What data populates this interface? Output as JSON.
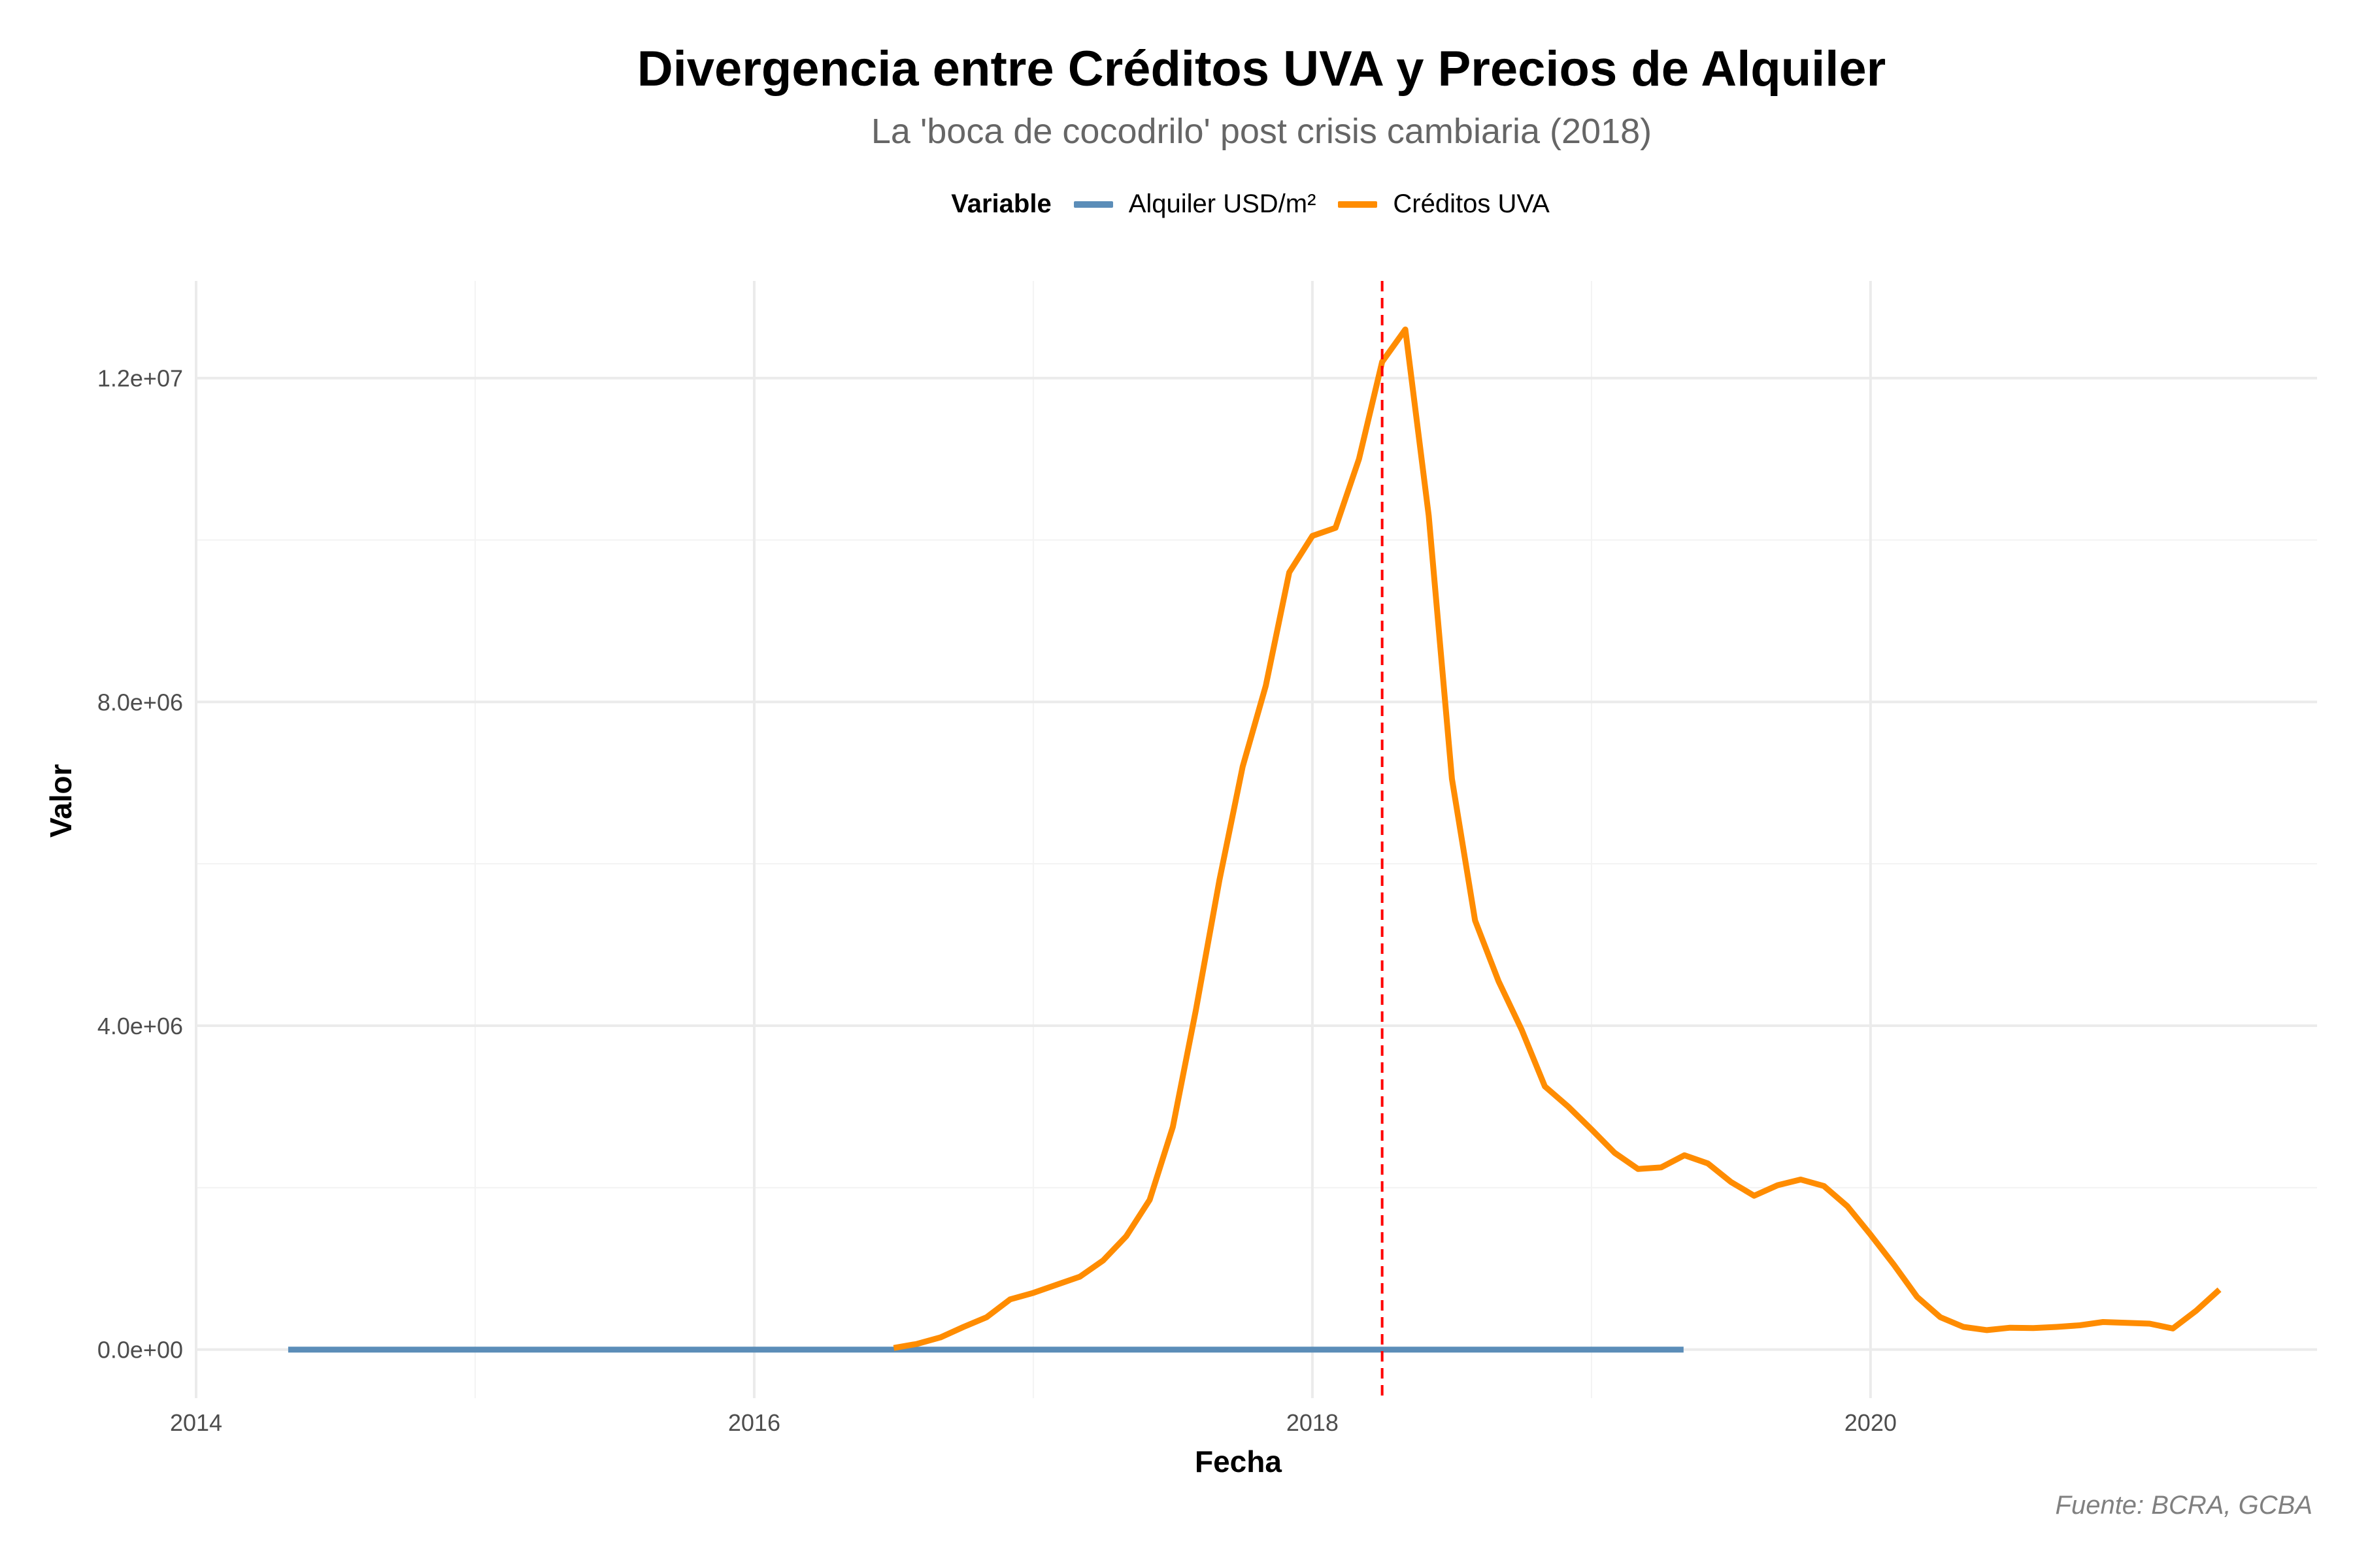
{
  "chart_data": {
    "type": "line",
    "title": "Divergencia entre Créditos UVA y Precios de Alquiler",
    "subtitle": "La 'boca de cocodrilo' post crisis cambiaria (2018)",
    "xlabel": "Fecha",
    "ylabel": "Valor",
    "caption": "Fuente: BCRA, GCBA",
    "legend_title": "Variable",
    "legend_position": "top",
    "grid": true,
    "xlim": [
      2014.0,
      2021.6
    ],
    "ylim": [
      -600000,
      13200000
    ],
    "x_ticks": [
      2014,
      2016,
      2018,
      2020
    ],
    "x_tick_labels": [
      "2014",
      "2016",
      "2018",
      "2020"
    ],
    "y_ticks": [
      0,
      4000000,
      8000000,
      12000000
    ],
    "y_tick_labels": [
      "0.0e+00",
      "4.0e+06",
      "8.0e+06",
      "1.2e+07"
    ],
    "vline": {
      "x": 2018.25,
      "color": "#ff0000",
      "style": "dashed"
    },
    "series": [
      {
        "name": "Alquiler USD/m²",
        "color": "#5b8db8",
        "x": [
          2014.33,
          2019.33
        ],
        "y": [
          15,
          15
        ]
      },
      {
        "name": "Créditos UVA",
        "color": "#ff8c00",
        "x": [
          2016.5,
          2016.583,
          2016.667,
          2016.75,
          2016.833,
          2016.917,
          2017.0,
          2017.083,
          2017.167,
          2017.25,
          2017.333,
          2017.417,
          2017.5,
          2017.583,
          2017.667,
          2017.75,
          2017.833,
          2017.917,
          2018.0,
          2018.083,
          2018.167,
          2018.25,
          2018.333,
          2018.417,
          2018.5,
          2018.583,
          2018.667,
          2018.75,
          2018.833,
          2018.917,
          2019.0,
          2019.083,
          2019.167,
          2019.25,
          2019.333,
          2019.417,
          2019.5,
          2019.583,
          2019.667,
          2019.75,
          2019.833,
          2019.917,
          2020.0,
          2020.083,
          2020.167,
          2020.25,
          2020.333,
          2020.417,
          2020.5,
          2020.583,
          2020.667,
          2020.75,
          2020.833,
          2020.917,
          2021.0,
          2021.083,
          2021.167,
          2021.25
        ],
        "y": [
          20000,
          70000,
          150000,
          280000,
          400000,
          620000,
          700000,
          800000,
          900000,
          1100000,
          1400000,
          1850000,
          2750000,
          4200000,
          5800000,
          7200000,
          8200000,
          9600000,
          10050000,
          10150000,
          11000000,
          12200000,
          12600000,
          10300000,
          7050000,
          5300000,
          4550000,
          3950000,
          3250000,
          3000000,
          2720000,
          2430000,
          2230000,
          2250000,
          2400000,
          2300000,
          2070000,
          1900000,
          2030000,
          2100000,
          2020000,
          1770000,
          1420000,
          1050000,
          650000,
          400000,
          280000,
          240000,
          270000,
          265000,
          280000,
          300000,
          340000,
          330000,
          320000,
          260000,
          480000,
          740000
        ]
      }
    ]
  }
}
